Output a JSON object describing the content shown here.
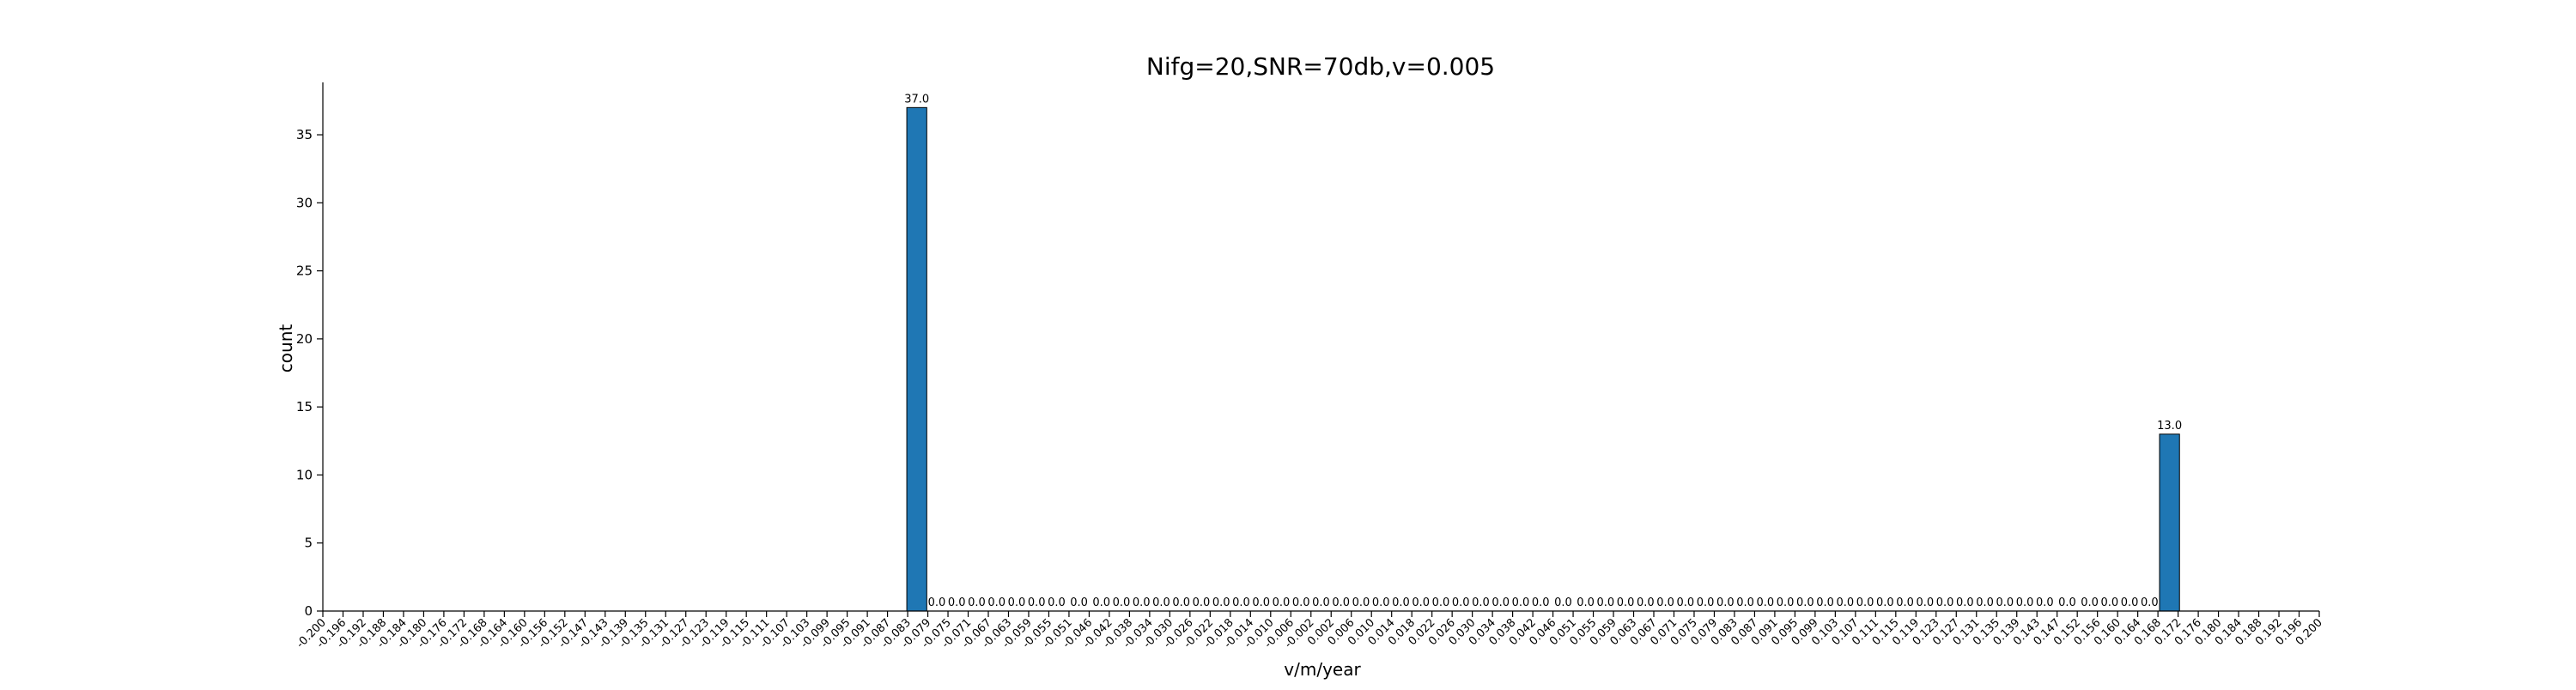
{
  "chart_data": {
    "type": "bar",
    "title": "Nifg=20,SNR=70db,v=0.005",
    "xlabel": "v/m/year",
    "ylabel": "count",
    "bar_color": "#1f77b4",
    "edge_color": "#000000",
    "ylim": [
      0,
      38.85
    ],
    "yticks": [
      0,
      5,
      10,
      15,
      20,
      25,
      30,
      35
    ],
    "xticks": [
      "-0.200",
      "-0.196",
      "-0.192",
      "-0.188",
      "-0.184",
      "-0.180",
      "-0.176",
      "-0.172",
      "-0.168",
      "-0.164",
      "-0.160",
      "-0.156",
      "-0.152",
      "-0.147",
      "-0.143",
      "-0.139",
      "-0.135",
      "-0.131",
      "-0.127",
      "-0.123",
      "-0.119",
      "-0.115",
      "-0.111",
      "-0.107",
      "-0.103",
      "-0.099",
      "-0.095",
      "-0.091",
      "-0.087",
      "-0.083",
      "-0.079",
      "-0.075",
      "-0.071",
      "-0.067",
      "-0.063",
      "-0.059",
      "-0.055",
      "-0.051",
      "-0.046",
      "-0.042",
      "-0.038",
      "-0.034",
      "-0.030",
      "-0.026",
      "-0.022",
      "-0.018",
      "-0.014",
      "-0.010",
      "-0.006",
      "-0.002",
      "0.002",
      "0.006",
      "0.010",
      "0.014",
      "0.018",
      "0.022",
      "0.026",
      "0.030",
      "0.034",
      "0.038",
      "0.042",
      "0.046",
      "0.051",
      "0.055",
      "0.059",
      "0.063",
      "0.067",
      "0.071",
      "0.075",
      "0.079",
      "0.083",
      "0.087",
      "0.091",
      "0.095",
      "0.099",
      "0.103",
      "0.107",
      "0.111",
      "0.115",
      "0.119",
      "0.123",
      "0.127",
      "0.131",
      "0.135",
      "0.139",
      "0.143",
      "0.147",
      "0.152",
      "0.156",
      "0.160",
      "0.164",
      "0.168",
      "0.172",
      "0.176",
      "0.180",
      "0.184",
      "0.188",
      "0.192",
      "0.196",
      "0.200"
    ],
    "bars": [
      {
        "from": -0.083,
        "to": -0.079,
        "value": 37,
        "label": "37.0"
      },
      {
        "from": -0.079,
        "to": -0.075,
        "value": 0,
        "label": "0.0"
      },
      {
        "from": -0.075,
        "to": -0.071,
        "value": 0,
        "label": "0.0"
      },
      {
        "from": -0.071,
        "to": -0.067,
        "value": 0,
        "label": "0.0"
      },
      {
        "from": -0.067,
        "to": -0.063,
        "value": 0,
        "label": "0.0"
      },
      {
        "from": -0.063,
        "to": -0.059,
        "value": 0,
        "label": "0.0"
      },
      {
        "from": -0.059,
        "to": -0.055,
        "value": 0,
        "label": "0.0"
      },
      {
        "from": -0.055,
        "to": -0.051,
        "value": 0,
        "label": "0.0"
      },
      {
        "from": -0.051,
        "to": -0.046,
        "value": 0,
        "label": "0.0"
      },
      {
        "from": -0.046,
        "to": -0.042,
        "value": 0,
        "label": "0.0"
      },
      {
        "from": -0.042,
        "to": -0.038,
        "value": 0,
        "label": "0.0"
      },
      {
        "from": -0.038,
        "to": -0.034,
        "value": 0,
        "label": "0.0"
      },
      {
        "from": -0.034,
        "to": -0.03,
        "value": 0,
        "label": "0.0"
      },
      {
        "from": -0.03,
        "to": -0.026,
        "value": 0,
        "label": "0.0"
      },
      {
        "from": -0.026,
        "to": -0.022,
        "value": 0,
        "label": "0.0"
      },
      {
        "from": -0.022,
        "to": -0.018,
        "value": 0,
        "label": "0.0"
      },
      {
        "from": -0.018,
        "to": -0.014,
        "value": 0,
        "label": "0.0"
      },
      {
        "from": -0.014,
        "to": -0.01,
        "value": 0,
        "label": "0.0"
      },
      {
        "from": -0.01,
        "to": -0.006,
        "value": 0,
        "label": "0.0"
      },
      {
        "from": -0.006,
        "to": -0.002,
        "value": 0,
        "label": "0.0"
      },
      {
        "from": -0.002,
        "to": 0.002,
        "value": 0,
        "label": "0.0"
      },
      {
        "from": 0.002,
        "to": 0.006,
        "value": 0,
        "label": "0.0"
      },
      {
        "from": 0.006,
        "to": 0.01,
        "value": 0,
        "label": "0.0"
      },
      {
        "from": 0.01,
        "to": 0.014,
        "value": 0,
        "label": "0.0"
      },
      {
        "from": 0.014,
        "to": 0.018,
        "value": 0,
        "label": "0.0"
      },
      {
        "from": 0.018,
        "to": 0.022,
        "value": 0,
        "label": "0.0"
      },
      {
        "from": 0.022,
        "to": 0.026,
        "value": 0,
        "label": "0.0"
      },
      {
        "from": 0.026,
        "to": 0.03,
        "value": 0,
        "label": "0.0"
      },
      {
        "from": 0.03,
        "to": 0.034,
        "value": 0,
        "label": "0.0"
      },
      {
        "from": 0.034,
        "to": 0.038,
        "value": 0,
        "label": "0.0"
      },
      {
        "from": 0.038,
        "to": 0.042,
        "value": 0,
        "label": "0.0"
      },
      {
        "from": 0.042,
        "to": 0.046,
        "value": 0,
        "label": "0.0"
      },
      {
        "from": 0.046,
        "to": 0.051,
        "value": 0,
        "label": "0.0"
      },
      {
        "from": 0.051,
        "to": 0.055,
        "value": 0,
        "label": "0.0"
      },
      {
        "from": 0.055,
        "to": 0.059,
        "value": 0,
        "label": "0.0"
      },
      {
        "from": 0.059,
        "to": 0.063,
        "value": 0,
        "label": "0.0"
      },
      {
        "from": 0.063,
        "to": 0.067,
        "value": 0,
        "label": "0.0"
      },
      {
        "from": 0.067,
        "to": 0.071,
        "value": 0,
        "label": "0.0"
      },
      {
        "from": 0.071,
        "to": 0.075,
        "value": 0,
        "label": "0.0"
      },
      {
        "from": 0.075,
        "to": 0.079,
        "value": 0,
        "label": "0.0"
      },
      {
        "from": 0.079,
        "to": 0.083,
        "value": 0,
        "label": "0.0"
      },
      {
        "from": 0.083,
        "to": 0.087,
        "value": 0,
        "label": "0.0"
      },
      {
        "from": 0.087,
        "to": 0.091,
        "value": 0,
        "label": "0.0"
      },
      {
        "from": 0.091,
        "to": 0.095,
        "value": 0,
        "label": "0.0"
      },
      {
        "from": 0.095,
        "to": 0.099,
        "value": 0,
        "label": "0.0"
      },
      {
        "from": 0.099,
        "to": 0.103,
        "value": 0,
        "label": "0.0"
      },
      {
        "from": 0.103,
        "to": 0.107,
        "value": 0,
        "label": "0.0"
      },
      {
        "from": 0.107,
        "to": 0.111,
        "value": 0,
        "label": "0.0"
      },
      {
        "from": 0.111,
        "to": 0.115,
        "value": 0,
        "label": "0.0"
      },
      {
        "from": 0.115,
        "to": 0.119,
        "value": 0,
        "label": "0.0"
      },
      {
        "from": 0.119,
        "to": 0.123,
        "value": 0,
        "label": "0.0"
      },
      {
        "from": 0.123,
        "to": 0.127,
        "value": 0,
        "label": "0.0"
      },
      {
        "from": 0.127,
        "to": 0.131,
        "value": 0,
        "label": "0.0"
      },
      {
        "from": 0.131,
        "to": 0.135,
        "value": 0,
        "label": "0.0"
      },
      {
        "from": 0.135,
        "to": 0.139,
        "value": 0,
        "label": "0.0"
      },
      {
        "from": 0.139,
        "to": 0.143,
        "value": 0,
        "label": "0.0"
      },
      {
        "from": 0.143,
        "to": 0.147,
        "value": 0,
        "label": "0.0"
      },
      {
        "from": 0.147,
        "to": 0.152,
        "value": 0,
        "label": "0.0"
      },
      {
        "from": 0.152,
        "to": 0.156,
        "value": 0,
        "label": "0.0"
      },
      {
        "from": 0.156,
        "to": 0.16,
        "value": 0,
        "label": "0.0"
      },
      {
        "from": 0.16,
        "to": 0.164,
        "value": 0,
        "label": "0.0"
      },
      {
        "from": 0.164,
        "to": 0.168,
        "value": 0,
        "label": "0.0"
      },
      {
        "from": 0.168,
        "to": 0.172,
        "value": 13,
        "label": "13.0"
      }
    ]
  }
}
